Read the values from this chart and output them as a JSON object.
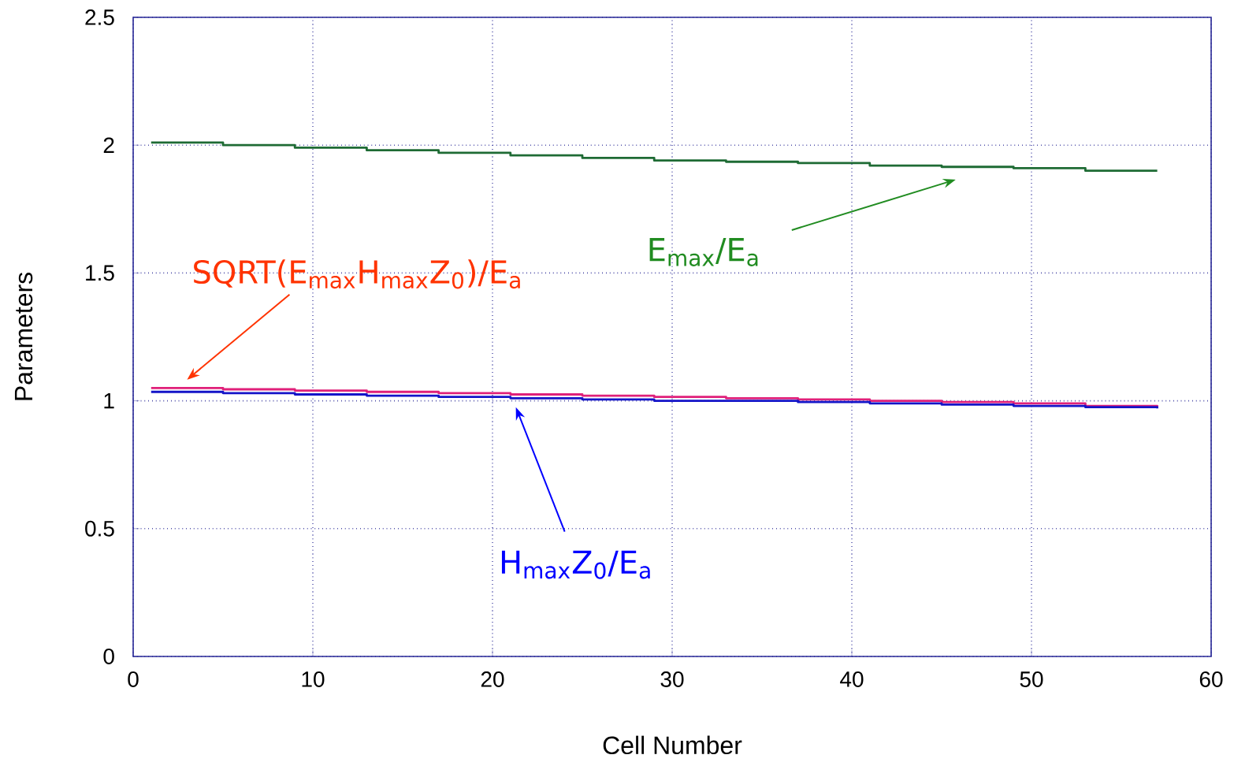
{
  "chart_data": {
    "type": "step",
    "xlabel": "Cell Number",
    "ylabel": "Parameters",
    "x": [
      1,
      5,
      9,
      13,
      17,
      21,
      25,
      29,
      33,
      37,
      41,
      45,
      49,
      53,
      57
    ],
    "series": [
      {
        "color": "#1e6b34",
        "values": [
          2.01,
          2.0,
          1.99,
          1.98,
          1.97,
          1.96,
          1.95,
          1.94,
          1.935,
          1.93,
          1.92,
          1.915,
          1.91,
          1.9,
          1.9
        ]
      },
      {
        "color": "#e0207a",
        "values": [
          1.05,
          1.045,
          1.04,
          1.035,
          1.03,
          1.025,
          1.02,
          1.015,
          1.01,
          1.005,
          1.0,
          0.995,
          0.99,
          0.98,
          0.975
        ]
      },
      {
        "color": "#1414c8",
        "values": [
          1.035,
          1.03,
          1.025,
          1.02,
          1.015,
          1.01,
          1.005,
          1.0,
          1.0,
          0.995,
          0.99,
          0.985,
          0.98,
          0.975,
          0.97
        ]
      }
    ],
    "annotations": [
      "E$_{max}$/E$_{a}$",
      "SQRT(E$_{max}$H$_{max}$Z$_{0}$)/E$_{a}$",
      "H$_{max}$Z$_{0}$/E$_{a}$"
    ],
    "xlim": [
      0,
      60
    ],
    "ylim": [
      0,
      2.5
    ],
    "xticks": [
      0,
      10,
      20,
      30,
      40,
      50,
      60
    ],
    "yticks": [
      0,
      0.5,
      1,
      1.5,
      2,
      2.5
    ],
    "grid": true,
    "marker": "none",
    "line_style": "solid"
  }
}
